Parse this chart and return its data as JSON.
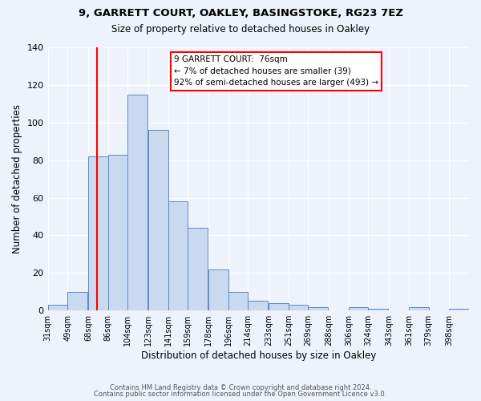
{
  "title1": "9, GARRETT COURT, OAKLEY, BASINGSTOKE, RG23 7EZ",
  "title2": "Size of property relative to detached houses in Oakley",
  "xlabel": "Distribution of detached houses by size in Oakley",
  "ylabel": "Number of detached properties",
  "bin_labels": [
    "31sqm",
    "49sqm",
    "68sqm",
    "86sqm",
    "104sqm",
    "123sqm",
    "141sqm",
    "159sqm",
    "178sqm",
    "196sqm",
    "214sqm",
    "233sqm",
    "251sqm",
    "269sqm",
    "288sqm",
    "306sqm",
    "324sqm",
    "343sqm",
    "361sqm",
    "379sqm",
    "398sqm"
  ],
  "bin_edges": [
    31,
    49,
    68,
    86,
    104,
    123,
    141,
    159,
    178,
    196,
    214,
    233,
    251,
    269,
    288,
    306,
    324,
    343,
    361,
    379,
    398
  ],
  "bar_heights": [
    3,
    10,
    82,
    83,
    115,
    96,
    58,
    44,
    22,
    10,
    5,
    4,
    3,
    2,
    0,
    2,
    1,
    0,
    2,
    0,
    1
  ],
  "bar_color": "#c9d9f0",
  "bar_edge_color": "#5a8ac6",
  "ylim": [
    0,
    140
  ],
  "yticks": [
    0,
    20,
    40,
    60,
    80,
    100,
    120,
    140
  ],
  "vline_x": 76,
  "vline_color": "red",
  "annotation_text": "9 GARRETT COURT:  76sqm\n← 7% of detached houses are smaller (39)\n92% of semi-detached houses are larger (493) →",
  "annotation_box_color": "white",
  "annotation_box_edge": "red",
  "footer1": "Contains HM Land Registry data © Crown copyright and database right 2024.",
  "footer2": "Contains public sector information licensed under the Open Government Licence v3.0.",
  "background_color": "#eef2fa"
}
